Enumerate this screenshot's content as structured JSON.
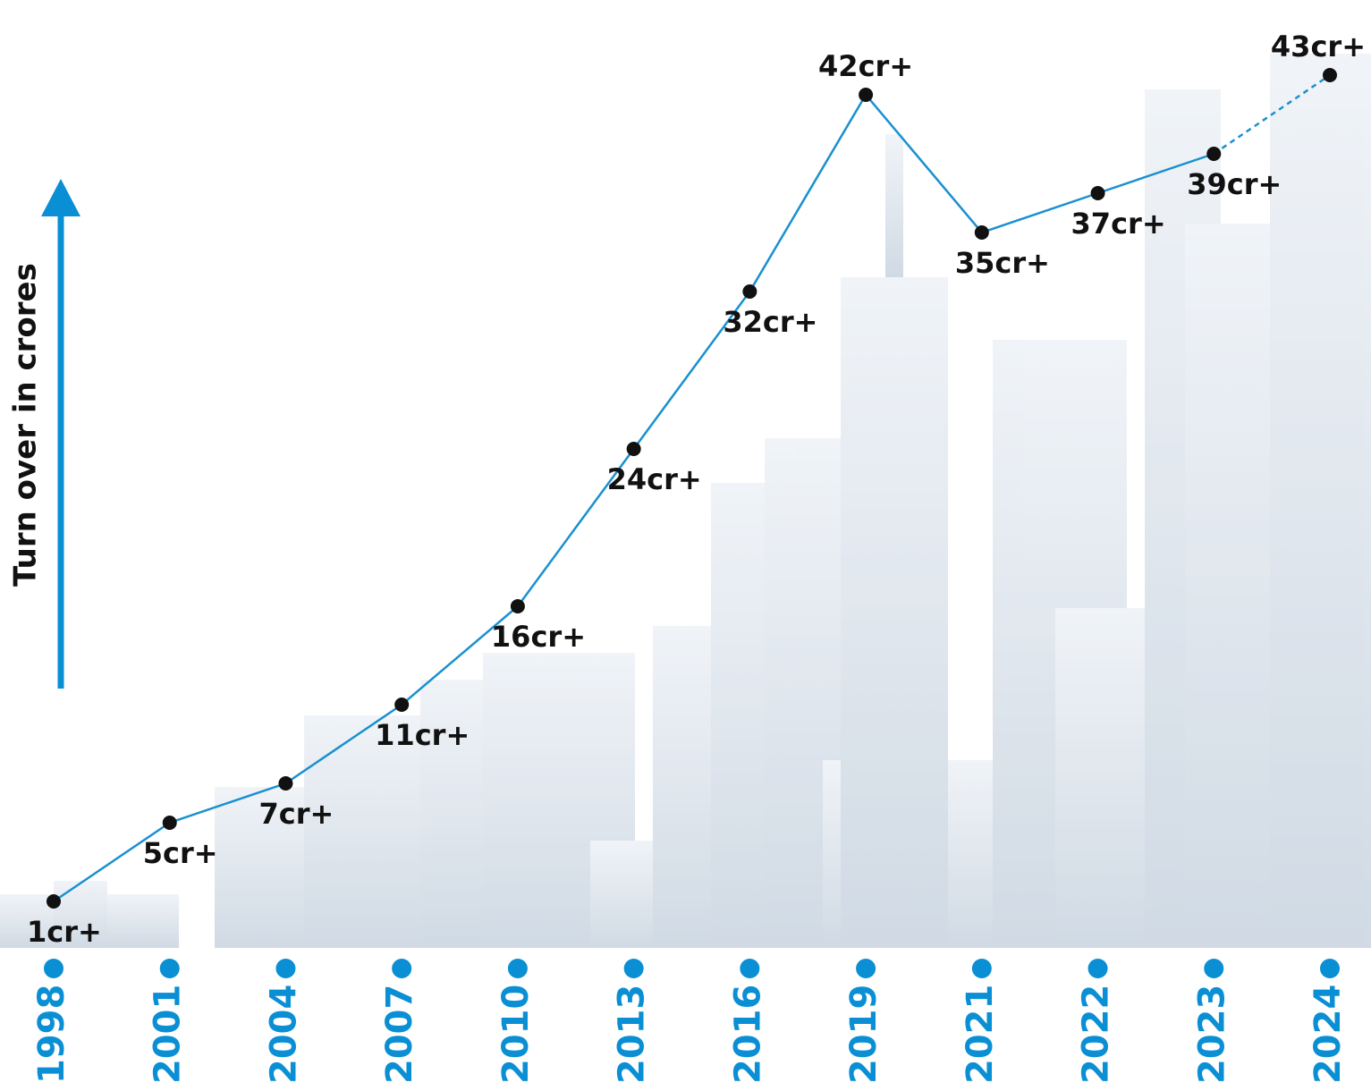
{
  "chart_data": {
    "type": "line",
    "y_label": "Turn over in crores",
    "categories": [
      "1998",
      "2001",
      "2004",
      "2007",
      "2010",
      "2013",
      "2016",
      "2019",
      "2021",
      "2022",
      "2023",
      "2024"
    ],
    "values": [
      1,
      5,
      7,
      11,
      16,
      24,
      32,
      42,
      35,
      37,
      39,
      43
    ],
    "value_labels": [
      "1cr+",
      "5cr+",
      "7cr+",
      "11cr+",
      "16cr+",
      "24cr+",
      "32cr+",
      "42cr+",
      "35cr+",
      "37cr+",
      "39cr+",
      "43cr+"
    ],
    "color": "#1a90d0",
    "ylim": [
      0,
      45
    ]
  }
}
